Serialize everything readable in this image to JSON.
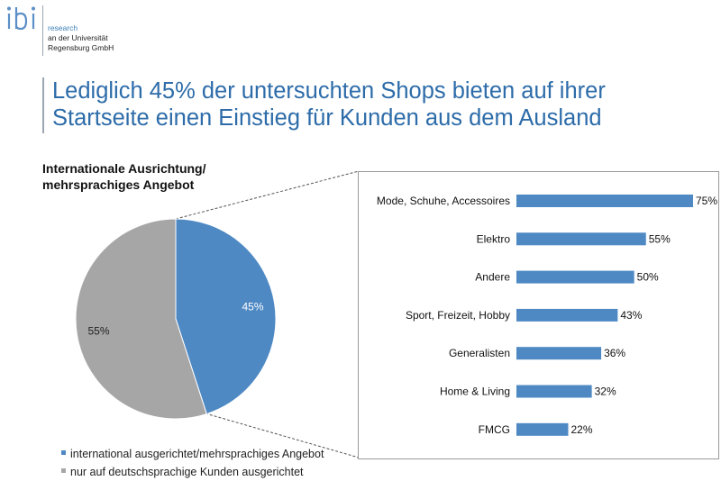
{
  "logo": {
    "mark": "ibi",
    "line1": "research",
    "line2": "an der Universität",
    "line3": "Regensburg GmbH"
  },
  "title": {
    "line1": "Lediglich 45% der untersuchten Shops bieten auf ihrer",
    "line2": "Startseite einen Einstieg für Kunden aus dem Ausland"
  },
  "colors": {
    "accent_blue": "#4e89c4",
    "gray": "#a6a6a6",
    "title_blue": "#2d6ca9"
  },
  "chart_data": [
    {
      "type": "pie",
      "title": "Internationale Ausrichtung/ mehrsprachiges Angebot",
      "title_lines": [
        "Internationale Ausrichtung/",
        "mehrsprachiges Angebot"
      ],
      "slices": [
        {
          "name": "international ausgerichtet/mehrsprachiges Angebot",
          "value": 45,
          "label": "45%",
          "color": "#4e89c4"
        },
        {
          "name": "nur auf deutschsprachige Kunden ausgerichtet",
          "value": 55,
          "label": "55%",
          "color": "#a6a6a6"
        }
      ],
      "legend_position": "bottom"
    },
    {
      "type": "bar",
      "orientation": "horizontal",
      "categories": [
        "Mode, Schuhe, Accessoires",
        "Elektro",
        "Andere",
        "Sport, Freizeit, Hobby",
        "Generalisten",
        "Home & Living",
        "FMCG"
      ],
      "values": [
        75,
        55,
        50,
        43,
        36,
        32,
        22
      ],
      "value_labels": [
        "75%",
        "55%",
        "50%",
        "43%",
        "36%",
        "32%",
        "22%"
      ],
      "xlim": [
        0,
        75
      ],
      "grid": false,
      "color": "#4e89c4"
    }
  ]
}
